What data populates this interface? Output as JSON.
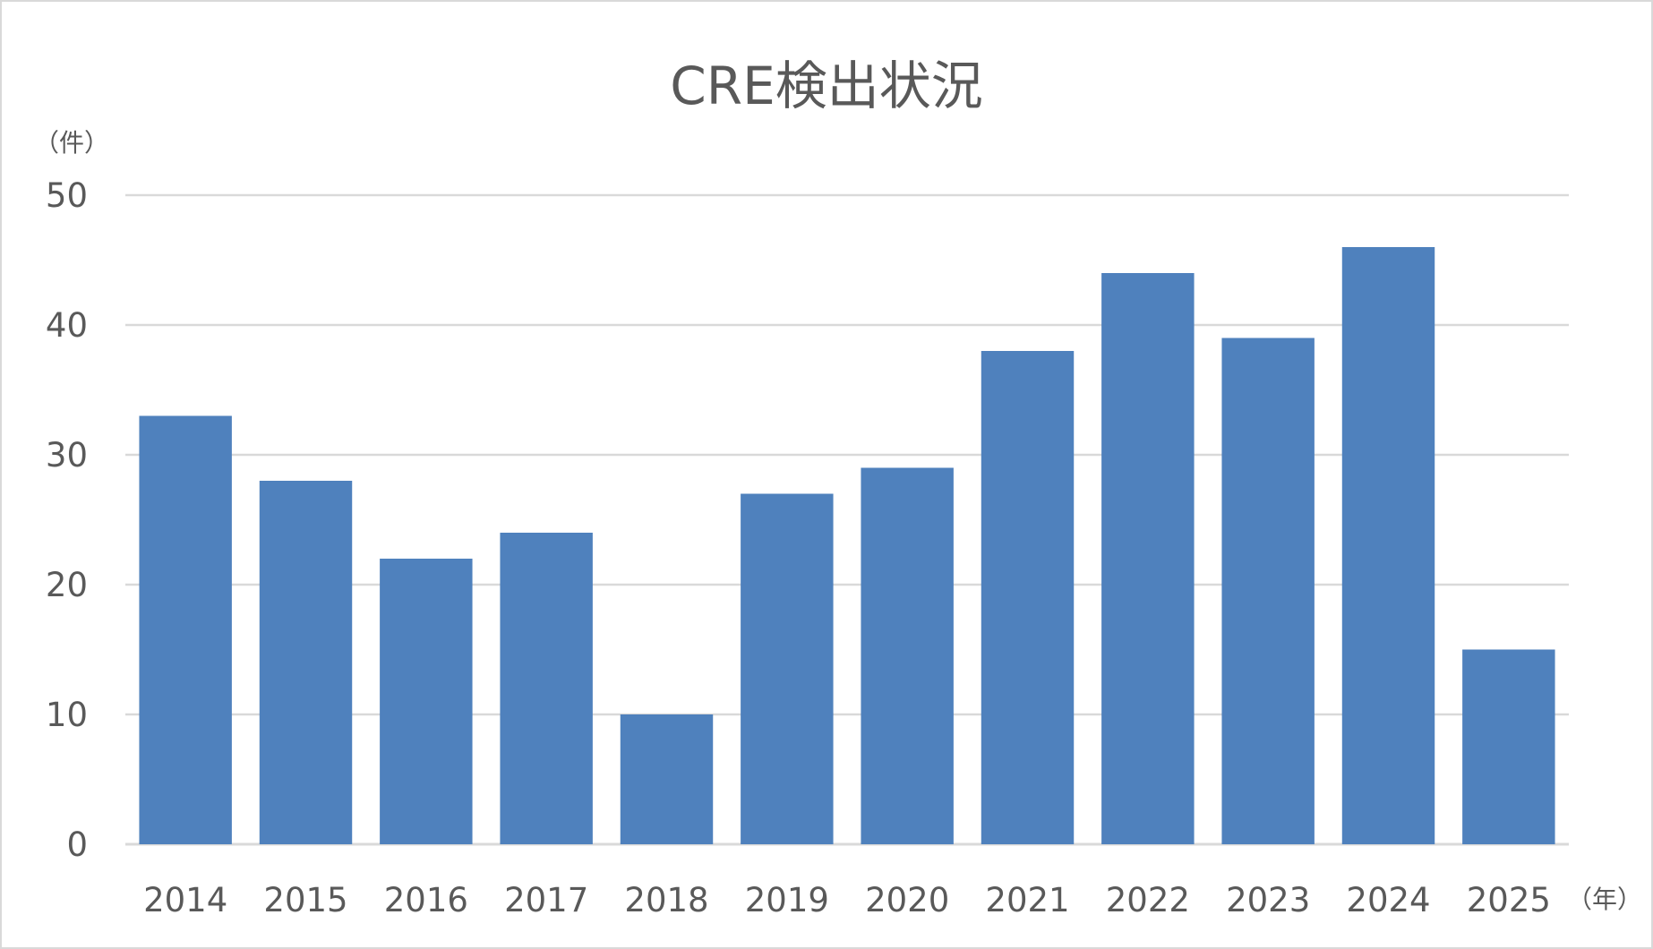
{
  "chart_data": {
    "type": "bar",
    "title": "CRE検出状況",
    "ylabel": "（件）",
    "xlabel": "（年）",
    "categories": [
      "2014",
      "2015",
      "2016",
      "2017",
      "2018",
      "2019",
      "2020",
      "2021",
      "2022",
      "2023",
      "2024",
      "2025"
    ],
    "values": [
      33,
      28,
      22,
      24,
      10,
      27,
      29,
      38,
      44,
      39,
      46,
      15
    ],
    "ylim": [
      0,
      50
    ],
    "yticks": [
      "0",
      "10",
      "20",
      "30",
      "40",
      "50"
    ],
    "grid": true,
    "bar_color": "#4f81bd"
  }
}
